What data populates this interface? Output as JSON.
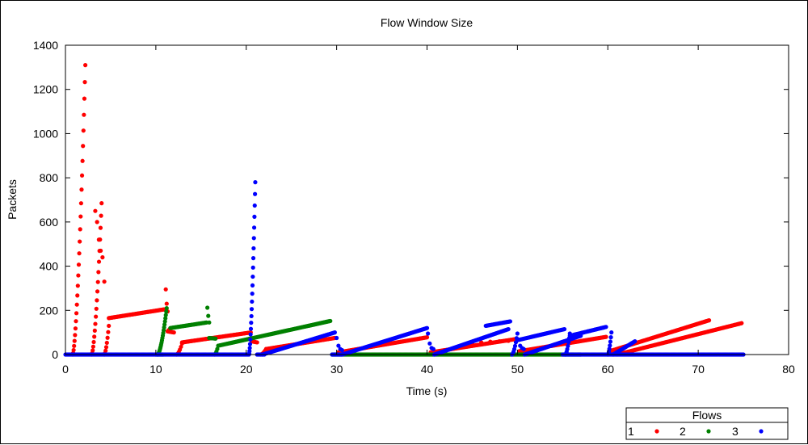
{
  "chart_data": {
    "type": "scatter",
    "title": "Flow Window Size",
    "xlabel": "Time (s)",
    "ylabel": "Packets",
    "xlim": [
      0,
      80
    ],
    "ylim": [
      0,
      1400
    ],
    "xticks": [
      0,
      10,
      20,
      30,
      40,
      50,
      60,
      70,
      80
    ],
    "yticks": [
      0,
      200,
      400,
      600,
      800,
      1000,
      1200,
      1400
    ],
    "grid": false,
    "legend": {
      "title": "Flows",
      "placement": "bottom-right",
      "entries": [
        "1",
        "2",
        "3"
      ]
    },
    "series": [
      {
        "name": "1",
        "color": "#ff0000",
        "segments": [
          {
            "kind": "spike",
            "x0": 0.8,
            "x1": 2.2,
            "y0": 0,
            "y1": 1310,
            "n": 28
          },
          {
            "kind": "spike",
            "x0": 2.9,
            "x1": 4.0,
            "y0": 0,
            "y1": 685,
            "n": 20
          },
          {
            "kind": "points",
            "x": [
              3.3,
              3.5,
              3.7,
              3.9,
              4.1,
              4.3
            ],
            "y": [
              650,
              600,
              520,
              470,
              440,
              330
            ]
          },
          {
            "kind": "spike",
            "x0": 4.3,
            "x1": 4.8,
            "y0": 0,
            "y1": 130,
            "n": 8
          },
          {
            "kind": "line",
            "x0": 4.8,
            "x1": 11.0,
            "y0": 165,
            "y1": 205,
            "n": 70
          },
          {
            "kind": "points",
            "x": [
              11.1,
              11.2,
              11.3,
              11.4,
              11.5
            ],
            "y": [
              295,
              230,
              195,
              110,
              105
            ]
          },
          {
            "kind": "line",
            "x0": 11.3,
            "x1": 12.0,
            "y0": 105,
            "y1": 100,
            "n": 8
          },
          {
            "kind": "spike",
            "x0": 12.3,
            "x1": 12.9,
            "y0": 0,
            "y1": 50,
            "n": 6
          },
          {
            "kind": "line",
            "x0": 12.9,
            "x1": 20.5,
            "y0": 55,
            "y1": 100,
            "n": 80
          },
          {
            "kind": "line",
            "x0": 20.6,
            "x1": 21.2,
            "y0": 60,
            "y1": 55,
            "n": 6
          },
          {
            "kind": "spike",
            "x0": 21.6,
            "x1": 22.2,
            "y0": 0,
            "y1": 25,
            "n": 6
          },
          {
            "kind": "line",
            "x0": 22.2,
            "x1": 29.8,
            "y0": 25,
            "y1": 75,
            "n": 80
          },
          {
            "kind": "line",
            "x0": 30.2,
            "x1": 40.0,
            "y0": 10,
            "y1": 78,
            "n": 100
          },
          {
            "kind": "line",
            "x0": 40.4,
            "x1": 49.8,
            "y0": 10,
            "y1": 70,
            "n": 95
          },
          {
            "kind": "line",
            "x0": 50.2,
            "x1": 59.8,
            "y0": 15,
            "y1": 80,
            "n": 95
          },
          {
            "kind": "line",
            "x0": 60.2,
            "x1": 71.2,
            "y0": 15,
            "y1": 155,
            "n": 110
          },
          {
            "kind": "line",
            "x0": 61.0,
            "x1": 74.8,
            "y0": 0,
            "y1": 142,
            "n": 140
          },
          {
            "kind": "points",
            "x": [
              45.0,
              46.0,
              47.0,
              48.0,
              49.0
            ],
            "y": [
              52,
              55,
              58,
              60,
              62
            ]
          }
        ]
      },
      {
        "name": "2",
        "color": "#008000",
        "segments": [
          {
            "kind": "spike",
            "x0": 10.2,
            "x1": 11.2,
            "y0": 0,
            "y1": 210,
            "n": 22
          },
          {
            "kind": "line",
            "x0": 11.6,
            "x1": 15.6,
            "y0": 120,
            "y1": 145,
            "n": 40
          },
          {
            "kind": "points",
            "x": [
              15.7,
              15.8,
              15.9
            ],
            "y": [
              212,
              175,
              145
            ]
          },
          {
            "kind": "line",
            "x0": 15.9,
            "x1": 16.6,
            "y0": 75,
            "y1": 72,
            "n": 8
          },
          {
            "kind": "spike",
            "x0": 16.5,
            "x1": 16.9,
            "y0": 0,
            "y1": 40,
            "n": 5
          },
          {
            "kind": "line",
            "x0": 16.9,
            "x1": 29.3,
            "y0": 40,
            "y1": 152,
            "n": 125
          },
          {
            "kind": "line",
            "x0": 29.5,
            "x1": 57.0,
            "y0": 0,
            "y1": 0,
            "n": 270
          },
          {
            "kind": "line",
            "x0": 10.0,
            "x1": 10.8,
            "y0": 0,
            "y1": 0,
            "n": 8
          }
        ]
      },
      {
        "name": "3",
        "color": "#0000ff",
        "segments": [
          {
            "kind": "line",
            "x0": 0.0,
            "x1": 20.2,
            "y0": 0,
            "y1": 0,
            "n": 200
          },
          {
            "kind": "spike",
            "x0": 20.3,
            "x1": 21.0,
            "y0": 0,
            "y1": 780,
            "n": 24
          },
          {
            "kind": "line",
            "x0": 21.2,
            "x1": 22.0,
            "y0": 0,
            "y1": 0,
            "n": 8
          },
          {
            "kind": "line",
            "x0": 21.8,
            "x1": 29.8,
            "y0": 0,
            "y1": 100,
            "n": 90
          },
          {
            "kind": "points",
            "x": [
              30.0,
              30.2,
              30.4,
              30.6
            ],
            "y": [
              75,
              40,
              25,
              20
            ]
          },
          {
            "kind": "line",
            "x0": 30.6,
            "x1": 40.0,
            "y0": 0,
            "y1": 120,
            "n": 105
          },
          {
            "kind": "points",
            "x": [
              40.1,
              40.3,
              40.5,
              40.7
            ],
            "y": [
              95,
              50,
              30,
              25
            ]
          },
          {
            "kind": "line",
            "x0": 40.8,
            "x1": 49.0,
            "y0": 0,
            "y1": 115,
            "n": 95
          },
          {
            "kind": "line",
            "x0": 46.5,
            "x1": 49.2,
            "y0": 130,
            "y1": 150,
            "n": 28
          },
          {
            "kind": "spike",
            "x0": 49.4,
            "x1": 50.0,
            "y0": 0,
            "y1": 95,
            "n": 8
          },
          {
            "kind": "line",
            "x0": 50.0,
            "x1": 55.2,
            "y0": 65,
            "y1": 115,
            "n": 55
          },
          {
            "kind": "points",
            "x": [
              50.3,
              50.5,
              50.7
            ],
            "y": [
              40,
              30,
              25
            ]
          },
          {
            "kind": "line",
            "x0": 50.8,
            "x1": 57.0,
            "y0": 0,
            "y1": 85,
            "n": 65
          },
          {
            "kind": "spike",
            "x0": 55.3,
            "x1": 55.8,
            "y0": 0,
            "y1": 95,
            "n": 8
          },
          {
            "kind": "line",
            "x0": 55.8,
            "x1": 59.8,
            "y0": 85,
            "y1": 125,
            "n": 42
          },
          {
            "kind": "spike",
            "x0": 60.0,
            "x1": 60.4,
            "y0": 0,
            "y1": 100,
            "n": 8
          },
          {
            "kind": "line",
            "x0": 60.6,
            "x1": 63.0,
            "y0": 0,
            "y1": 60,
            "n": 28
          },
          {
            "kind": "line",
            "x0": 55.0,
            "x1": 75.0,
            "y0": 0,
            "y1": 0,
            "n": 200
          },
          {
            "kind": "line",
            "x0": 29.5,
            "x1": 30.5,
            "y0": 0,
            "y1": 0,
            "n": 10
          }
        ]
      }
    ]
  }
}
